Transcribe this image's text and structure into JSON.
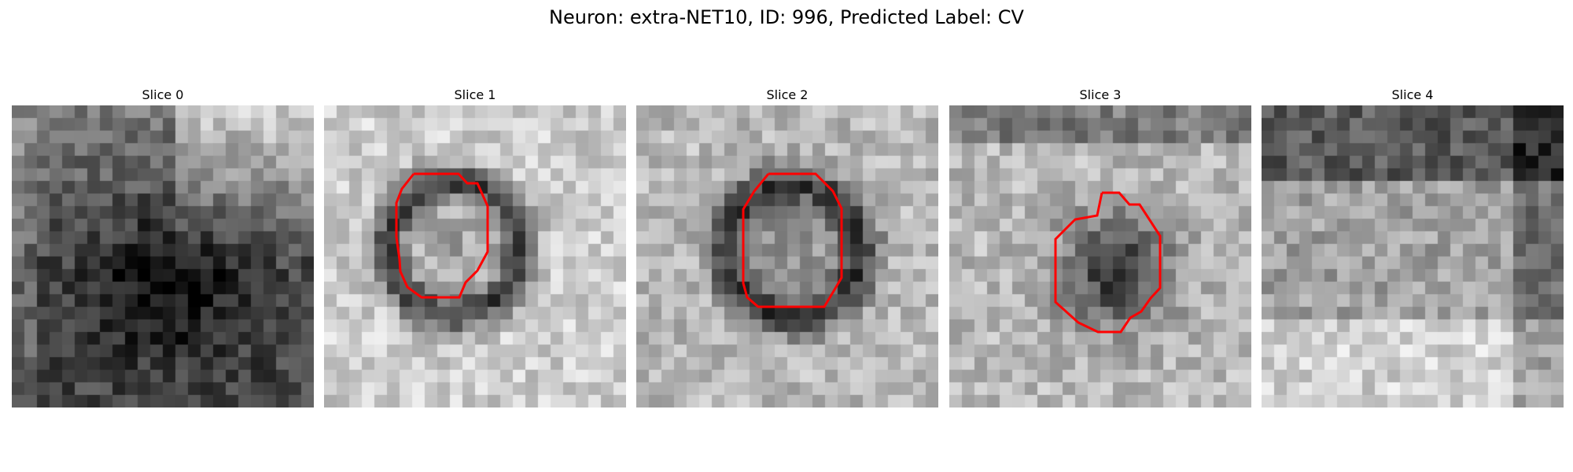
{
  "title": "Neuron: extra-NET10, ID: 996, Predicted Label: CV",
  "colors": {
    "roi_outline": "#ff0000",
    "background": "#ffffff"
  },
  "panels": [
    {
      "label": "Slice 0",
      "has_roi": false
    },
    {
      "label": "Slice 1",
      "has_roi": true
    },
    {
      "label": "Slice 2",
      "has_roi": true
    },
    {
      "label": "Slice 3",
      "has_roi": true
    },
    {
      "label": "Slice 4",
      "has_roi": false
    }
  ]
}
